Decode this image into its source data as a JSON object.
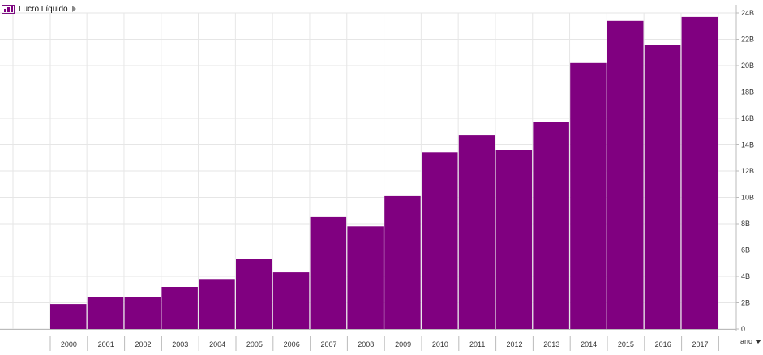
{
  "legend": {
    "label": "Lucro Líquido"
  },
  "xaxis_control": {
    "label": "ano"
  },
  "colors": {
    "bar": "#800080",
    "grid": "#e6e6e6",
    "axis": "#bbbbbb",
    "text": "#333333"
  },
  "chart_data": {
    "type": "bar",
    "categories": [
      "2000",
      "2001",
      "2002",
      "2003",
      "2004",
      "2005",
      "2006",
      "2007",
      "2008",
      "2009",
      "2010",
      "2011",
      "2012",
      "2013",
      "2014",
      "2015",
      "2016",
      "2017"
    ],
    "series": [
      {
        "name": "Lucro Líquido",
        "values": [
          1.9,
          2.4,
          2.4,
          3.2,
          3.8,
          5.3,
          4.3,
          8.5,
          7.8,
          10.1,
          13.4,
          14.7,
          13.6,
          15.7,
          20.2,
          23.4,
          21.6,
          23.7
        ]
      }
    ],
    "y_ticks": [
      "0",
      "2B",
      "4B",
      "6B",
      "8B",
      "10B",
      "12B",
      "14B",
      "16B",
      "18B",
      "20B",
      "22B",
      "24B"
    ],
    "ylim": [
      0,
      24
    ],
    "grid": true,
    "legend_position": "top-left",
    "y_axis_position": "right"
  }
}
